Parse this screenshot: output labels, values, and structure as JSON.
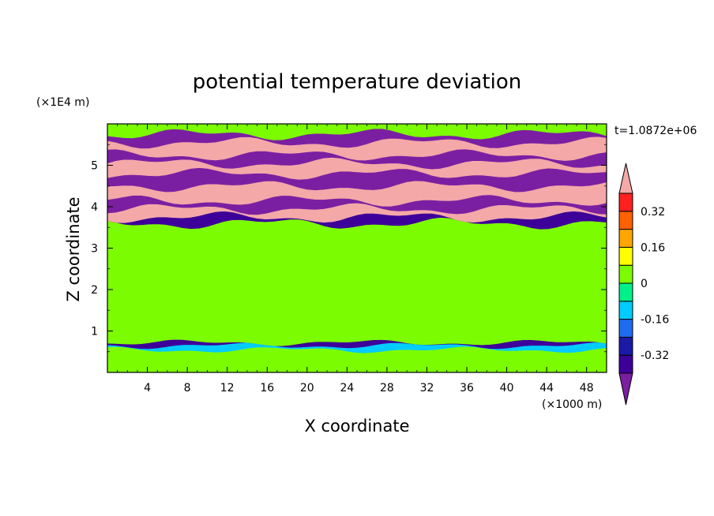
{
  "chart_data": {
    "type": "heatmap",
    "title": "potential temperature deviation",
    "xlabel": "X coordinate",
    "ylabel": "Z coordinate",
    "x_unit": "(×1000 m)",
    "y_unit": "(×1E4 m)",
    "time_label": "t=1.0872e+06",
    "xlim": [
      0,
      50
    ],
    "ylim": [
      0,
      6
    ],
    "x_ticks": [
      4,
      8,
      12,
      16,
      20,
      24,
      28,
      32,
      36,
      40,
      44,
      48
    ],
    "x_tick_labels": [
      "4",
      "8",
      "12",
      "16",
      "20",
      "24",
      "28",
      "32",
      "36",
      "40",
      "44",
      "48"
    ],
    "y_ticks": [
      1,
      2,
      3,
      4,
      5
    ],
    "y_tick_labels": [
      "1",
      "2",
      "3",
      "4",
      "5"
    ],
    "colorbar": {
      "levels": [
        -0.4,
        -0.32,
        -0.24,
        -0.16,
        -0.08,
        0,
        0.08,
        0.16,
        0.24,
        0.32,
        0.4
      ],
      "colors": [
        "#7b1fa2",
        "#3d0099",
        "#1a1aa6",
        "#1f6cf0",
        "#00ccff",
        "#00f08a",
        "#7cfc00",
        "#ffff00",
        "#ffa500",
        "#ff6000",
        "#ff2020",
        "#f4a8a8"
      ],
      "labels": [
        "0.32",
        "0.16",
        "0",
        "-0.16",
        "-0.32"
      ],
      "label_values": [
        0.32,
        0.16,
        0,
        -0.16,
        -0.32
      ]
    },
    "bands": [
      {
        "z0": 0.0,
        "z1": 0.55,
        "value": 0.02
      },
      {
        "z0": 0.55,
        "z1": 0.65,
        "value": -0.12
      },
      {
        "z0": 0.65,
        "z1": 0.72,
        "value": -0.36
      },
      {
        "z0": 0.72,
        "z1": 1.6,
        "value": 0.05
      },
      {
        "z0": 1.6,
        "z1": 3.6,
        "value": 0.03
      },
      {
        "z0": 3.6,
        "z1": 3.75,
        "value": -0.36
      },
      {
        "z0": 3.75,
        "z1": 3.95,
        "value": 0.45
      },
      {
        "z0": 3.95,
        "z1": 4.15,
        "value": -0.45
      },
      {
        "z0": 4.15,
        "z1": 4.5,
        "value": 0.45
      },
      {
        "z0": 4.5,
        "z1": 4.8,
        "value": -0.45
      },
      {
        "z0": 4.8,
        "z1": 5.05,
        "value": 0.45
      },
      {
        "z0": 5.05,
        "z1": 5.25,
        "value": -0.45
      },
      {
        "z0": 5.25,
        "z1": 5.55,
        "value": 0.45
      },
      {
        "z0": 5.55,
        "z1": 5.75,
        "value": -0.45
      },
      {
        "z0": 5.75,
        "z1": 6.0,
        "value": 0.05
      }
    ]
  }
}
